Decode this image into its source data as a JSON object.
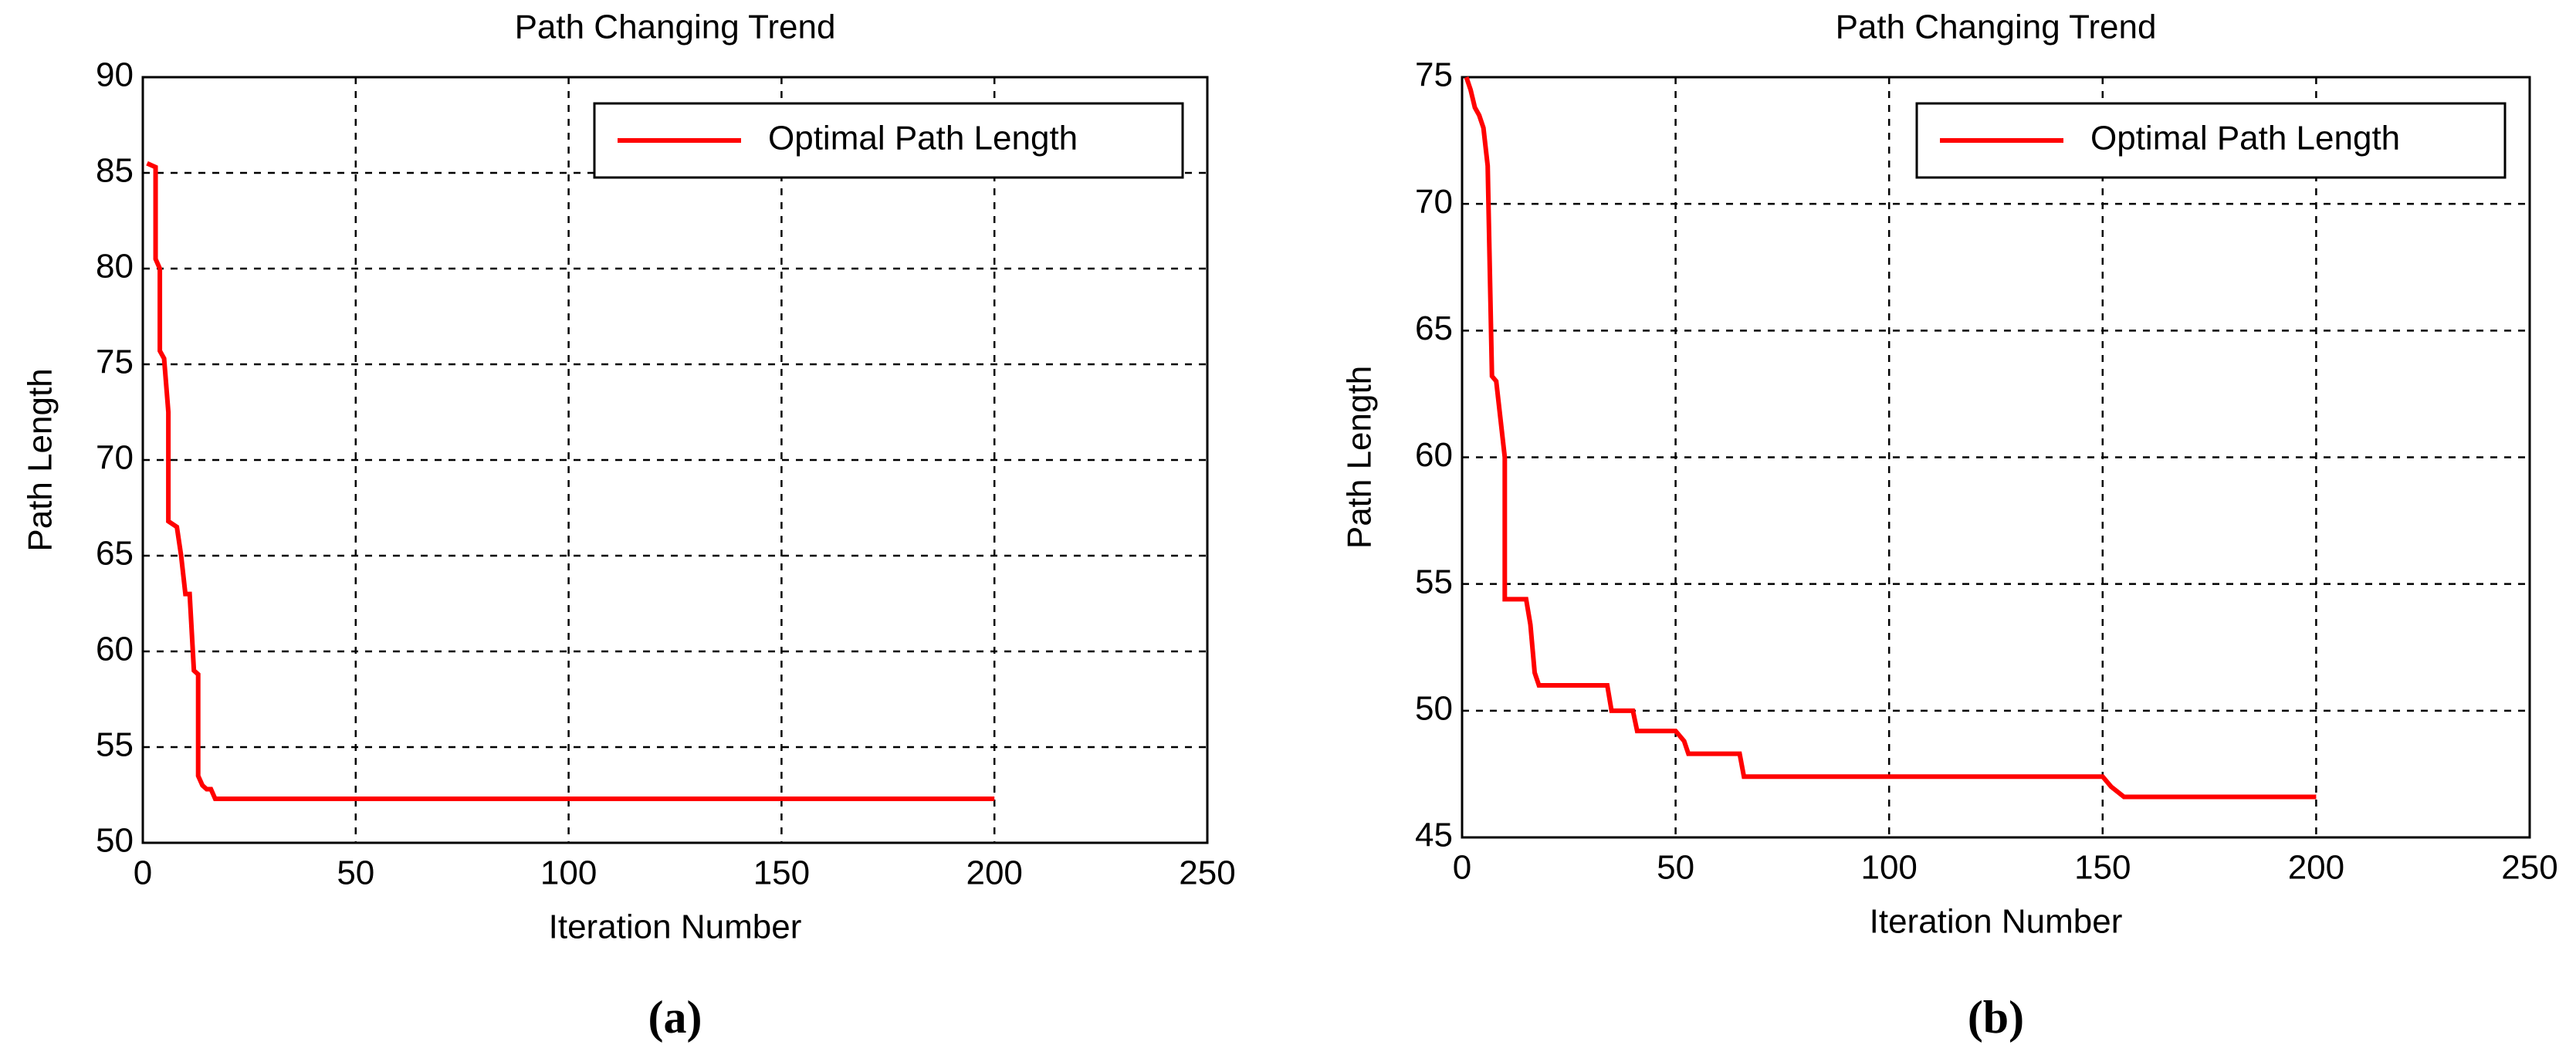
{
  "chart_data": [
    {
      "type": "line",
      "title": "Path Changing Trend",
      "xlabel": "Iteration Number",
      "ylabel": "Path Length",
      "caption": "(a)",
      "x": [
        1,
        3,
        3,
        4,
        4,
        5,
        6,
        6,
        8,
        9,
        10,
        11,
        12,
        13,
        13,
        14,
        15,
        16,
        17,
        200
      ],
      "series": [
        {
          "name": "Optimal Path Length",
          "color": "#ff0000",
          "values": [
            85.5,
            85.3,
            80.5,
            80,
            75.7,
            75.3,
            72.5,
            66.8,
            66.5,
            65,
            63,
            63,
            59,
            58.8,
            53.5,
            53,
            52.8,
            52.8,
            52.3,
            52.3
          ]
        }
      ],
      "xlim": [
        0,
        250
      ],
      "xticks": [
        0,
        50,
        100,
        150,
        200,
        250
      ],
      "ylim": [
        50,
        90
      ],
      "yticks": [
        50,
        55,
        60,
        65,
        70,
        75,
        80,
        85,
        90
      ],
      "grid": true,
      "legend": "upper right"
    },
    {
      "type": "line",
      "title": "Path Changing Trend",
      "xlabel": "Iteration Number",
      "ylabel": "Path Length",
      "caption": "(b)",
      "x": [
        1,
        2,
        3,
        4,
        5,
        6,
        7,
        8,
        9,
        10,
        10,
        15,
        16,
        17,
        18,
        34,
        35,
        40,
        41,
        50,
        52,
        53,
        65,
        66,
        150,
        152,
        155,
        200
      ],
      "series": [
        {
          "name": "Optimal Path Length",
          "color": "#ff0000",
          "values": [
            75,
            74.5,
            73.8,
            73.5,
            73,
            71.5,
            63.2,
            63,
            61.5,
            60,
            54.4,
            54.4,
            53.4,
            51.5,
            51,
            51,
            50,
            50,
            49.2,
            49.2,
            48.8,
            48.3,
            48.3,
            47.4,
            47.4,
            47,
            46.6,
            46.6
          ]
        }
      ],
      "xlim": [
        0,
        250
      ],
      "xticks": [
        0,
        50,
        100,
        150,
        200,
        250
      ],
      "ylim": [
        45,
        75
      ],
      "yticks": [
        45,
        50,
        55,
        60,
        65,
        70,
        75
      ],
      "grid": true,
      "legend": "upper right"
    }
  ]
}
